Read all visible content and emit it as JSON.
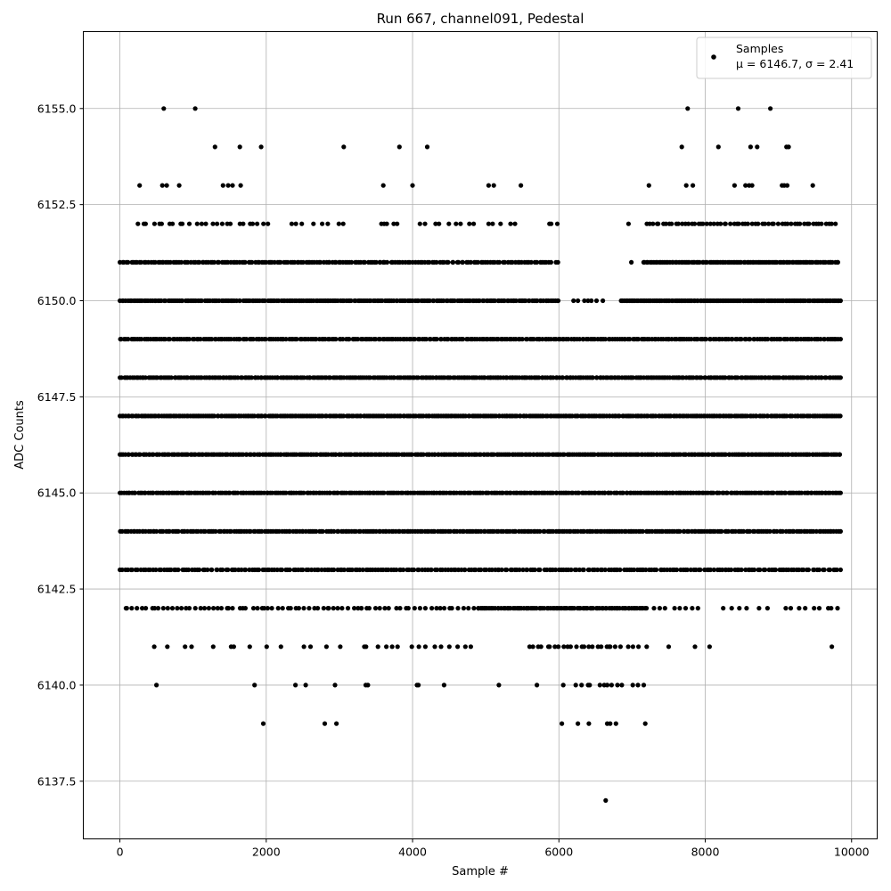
{
  "chart_data": {
    "type": "scatter",
    "title": "Run 667, channel091, Pedestal",
    "xlabel": "Sample #",
    "ylabel": "ADC Counts",
    "xlim": [
      -500,
      10350
    ],
    "ylim": [
      6136.0,
      6157.0
    ],
    "xticks": [
      0,
      2000,
      4000,
      6000,
      8000,
      10000
    ],
    "yticks": [
      6137.5,
      6140.0,
      6142.5,
      6145.0,
      6147.5,
      6150.0,
      6152.5,
      6155.0
    ],
    "xtick_labels": [
      "0",
      "2000",
      "4000",
      "6000",
      "8000",
      "10000"
    ],
    "ytick_labels": [
      "6137.5",
      "6140.0",
      "6142.5",
      "6145.0",
      "6147.5",
      "6150.0",
      "6152.5",
      "6155.0"
    ],
    "grid": true,
    "legend": {
      "placement": "top-right",
      "entries": [
        {
          "label_line1": "Samples",
          "label_line2": "μ = 6146.7, σ = 2.41"
        }
      ]
    },
    "series": [
      {
        "name": "Samples",
        "color": "#000000",
        "marker": "dot",
        "mean": 6146.7,
        "sigma": 2.41,
        "x_min": 0,
        "x_max": 9850,
        "bands": [
          {
            "y": 6155,
            "x": [
              600,
              1030,
              7760,
              8450,
              8890
            ]
          },
          {
            "y": 6154,
            "x": [
              1300,
              1640,
              1930,
              3060,
              3820,
              4200,
              7680,
              8180,
              8620,
              8710,
              9110,
              9140
            ]
          },
          {
            "y": 6153,
            "x": [
              270,
              580,
              640,
              810,
              1410,
              1480,
              1540,
              1650,
              3600,
              4000,
              5040,
              5110,
              5480,
              7230,
              7740,
              7830,
              8400,
              8550,
              8600,
              8640,
              9050,
              9080,
              9120,
              9470
            ]
          },
          {
            "y": 6152,
            "ranges": [
              [
                230,
                2050,
                26
              ],
              [
                2300,
                3100,
                8
              ],
              [
                3550,
                3800,
                5
              ],
              [
                4100,
                4850,
                9
              ],
              [
                5000,
                5400,
                5
              ],
              [
                5850,
                6000,
                3
              ],
              [
                6950,
                7000,
                1
              ],
              [
                7200,
                9780,
                60
              ]
            ]
          },
          {
            "y": 6151,
            "ranges": [
              [
                0,
                3600,
                120
              ],
              [
                3600,
                5900,
                70
              ],
              [
                5950,
                6000,
                2
              ],
              [
                6990,
                7000,
                1
              ],
              [
                7150,
                9820,
                110
              ]
            ]
          },
          {
            "y": 6150,
            "ranges": [
              [
                0,
                6000,
                230
              ],
              [
                6200,
                6600,
                7
              ],
              [
                6850,
                9850,
                140
              ]
            ]
          },
          {
            "y": 6149,
            "ranges": [
              [
                0,
                9850,
                330
              ]
            ]
          },
          {
            "y": 6148,
            "ranges": [
              [
                0,
                9850,
                360
              ]
            ]
          },
          {
            "y": 6147,
            "ranges": [
              [
                0,
                9850,
                380
              ]
            ]
          },
          {
            "y": 6146,
            "ranges": [
              [
                0,
                9850,
                380
              ]
            ]
          },
          {
            "y": 6145,
            "ranges": [
              [
                0,
                9850,
                360
              ]
            ]
          },
          {
            "y": 6144,
            "ranges": [
              [
                0,
                9850,
                330
              ]
            ]
          },
          {
            "y": 6143,
            "ranges": [
              [
                0,
                9850,
                280
              ]
            ]
          },
          {
            "y": 6142,
            "ranges": [
              [
                60,
                3300,
                55
              ],
              [
                3300,
                4900,
                25
              ],
              [
                4900,
                7200,
                90
              ],
              [
                7300,
                7900,
                8
              ],
              [
                8200,
                8900,
                6
              ],
              [
                9100,
                9850,
                9
              ]
            ]
          },
          {
            "y": 6141,
            "ranges": [
              [
                420,
                3050,
                14
              ],
              [
                3300,
                4800,
                15
              ],
              [
                5600,
                6700,
                20
              ],
              [
                6700,
                7200,
                7
              ]
            ],
            "x": [
              7500,
              7860,
              8060,
              9730
            ]
          },
          {
            "y": 6140,
            "x": [
              500,
              1840,
              2400,
              2540,
              2940,
              3360,
              3390,
              4060,
              4080,
              4430,
              5180,
              5700,
              6060,
              6230,
              6310,
              6400,
              6420,
              6560,
              6620,
              6660,
              6720,
              6800,
              6860,
              7010,
              7080,
              7160
            ]
          },
          {
            "y": 6139,
            "x": [
              1960,
              2800,
              2960,
              6040,
              6260,
              6410,
              6660,
              6700,
              6780,
              7180
            ]
          },
          {
            "y": 6137,
            "x": [
              6640
            ]
          }
        ]
      }
    ]
  }
}
